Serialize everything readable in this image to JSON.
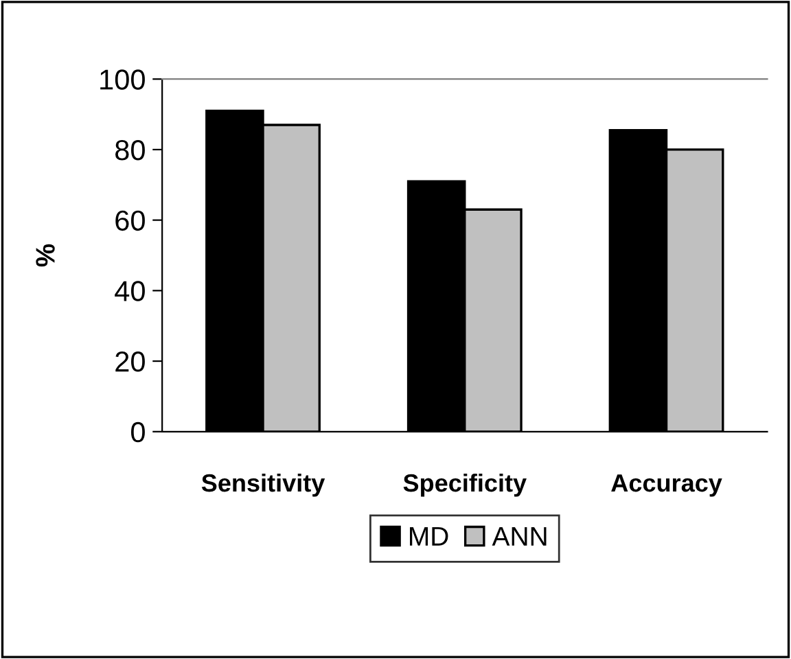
{
  "chart_data": {
    "type": "bar",
    "ylabel": "%",
    "categories": [
      "Sensitivity",
      "Specificity",
      "Accuracy"
    ],
    "series": [
      {
        "name": "MD",
        "color": "#000000",
        "values": [
          91,
          71,
          85.5
        ]
      },
      {
        "name": "ANN",
        "color": "#c0c0c0",
        "values": [
          87,
          63,
          80
        ]
      }
    ],
    "ylim": [
      0,
      100
    ],
    "yticks": [
      0,
      20,
      40,
      60,
      80,
      100
    ],
    "grid": false,
    "legend": "bottom"
  }
}
